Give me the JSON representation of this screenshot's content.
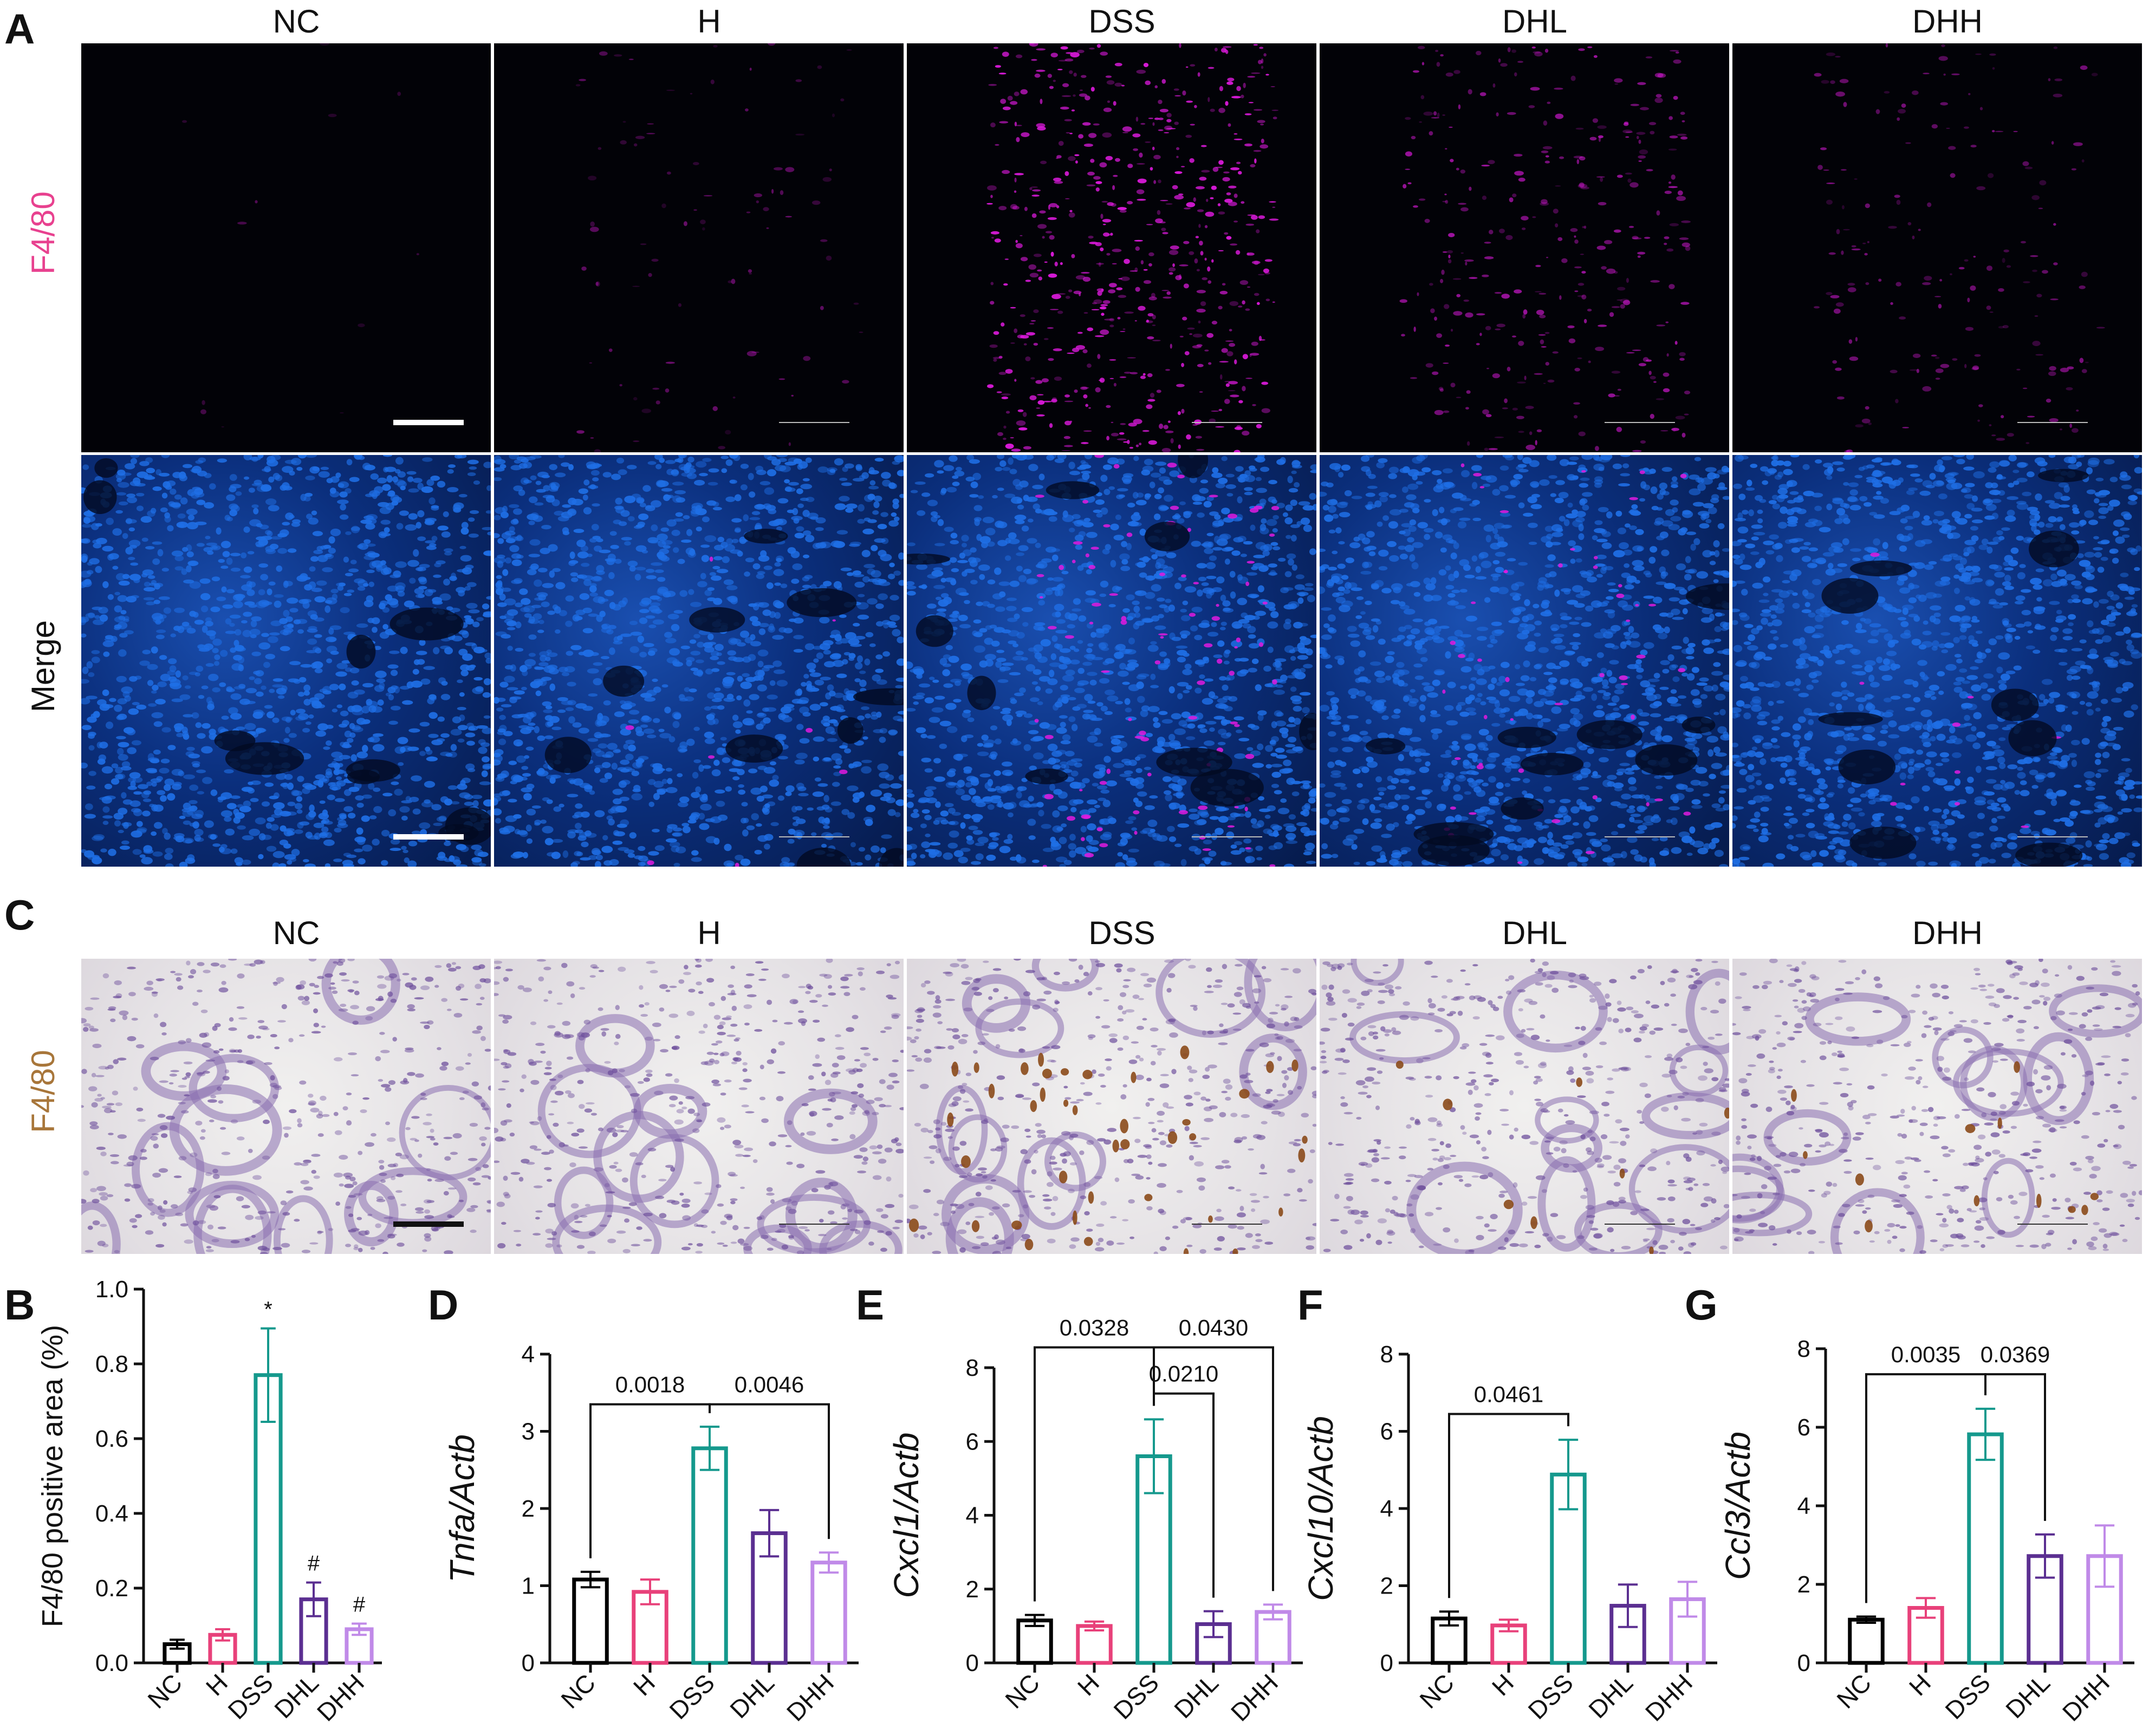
{
  "panels": {
    "A": {
      "letter": "A",
      "columns": [
        "NC",
        "H",
        "DSS",
        "DHL",
        "DHH"
      ],
      "rows": [
        {
          "label": "F4/80",
          "label_color": "#e8418f",
          "kind": "fluor"
        },
        {
          "label": "Merge",
          "label_color": "#111111",
          "kind": "merge"
        }
      ]
    },
    "C": {
      "letter": "C",
      "columns": [
        "NC",
        "H",
        "DSS",
        "DHL",
        "DHH"
      ],
      "row_label": "F4/80",
      "row_label_color": "#a8763a"
    }
  },
  "colors": {
    "NC": "#000000",
    "H": "#e8417a",
    "DSS": "#15998d",
    "DHL": "#5b2f91",
    "DHH": "#c08ae8",
    "nuclei_blue": "#1f6fe6",
    "f480_magenta": "#e01ae0",
    "hema_purple": "#8a6fb0",
    "dab_brown": "#8b4a1a"
  },
  "chart_data": [
    {
      "panel": "B",
      "type": "bar",
      "categories": [
        "NC",
        "H",
        "DSS",
        "DHL",
        "DHH"
      ],
      "values": [
        0.05,
        0.075,
        0.77,
        0.17,
        0.09
      ],
      "errors": [
        0.012,
        0.015,
        0.125,
        0.045,
        0.015
      ],
      "annotations": [
        "",
        "",
        "*",
        "#",
        "#"
      ],
      "ylabel": "F4/80 positive area (%)",
      "ylabel_italic_part": "",
      "ylim": [
        0,
        1.0
      ],
      "yticks": [
        "0.0",
        "0.2",
        "0.4",
        "0.6",
        "0.8",
        "1.0"
      ],
      "comparisons": []
    },
    {
      "panel": "D",
      "type": "bar",
      "categories": [
        "NC",
        "H",
        "DSS",
        "DHL",
        "DHH"
      ],
      "values": [
        1.08,
        0.92,
        2.78,
        1.68,
        1.3
      ],
      "errors": [
        0.1,
        0.16,
        0.28,
        0.3,
        0.13
      ],
      "annotations": [],
      "ylabel": "Tnfa/Actb",
      "ylim": [
        0,
        4
      ],
      "yticks": [
        "0",
        "1",
        "2",
        "3",
        "4"
      ],
      "comparisons": [
        {
          "from": 0,
          "to": 2,
          "label": "0.0018",
          "y": 3.35
        },
        {
          "from": 2,
          "to": 4,
          "label": "0.0046",
          "y": 3.35
        }
      ]
    },
    {
      "panel": "E",
      "type": "bar",
      "categories": [
        "NC",
        "H",
        "DSS",
        "DHL",
        "DHH"
      ],
      "values": [
        1.15,
        1.0,
        5.6,
        1.05,
        1.38
      ],
      "errors": [
        0.15,
        0.12,
        1.0,
        0.35,
        0.2
      ],
      "annotations": [],
      "ylabel": "Cxcl1/Actb",
      "ylim": [
        0,
        8
      ],
      "yticks": [
        "0",
        "2",
        "4",
        "6",
        "8"
      ],
      "comparisons": [
        {
          "from": 0,
          "to": 2,
          "label": "0.0328",
          "y": 8.55
        },
        {
          "from": 2,
          "to": 4,
          "label": "0.0430",
          "y": 8.55
        },
        {
          "from": 2,
          "to": 3,
          "label": "0.0210",
          "y": 7.3
        }
      ]
    },
    {
      "panel": "F",
      "type": "bar",
      "categories": [
        "NC",
        "H",
        "DSS",
        "DHL",
        "DHH"
      ],
      "values": [
        1.15,
        0.97,
        4.88,
        1.48,
        1.65
      ],
      "errors": [
        0.18,
        0.15,
        0.9,
        0.55,
        0.45
      ],
      "annotations": [],
      "ylabel": "Cxcl10/Actb",
      "ylim": [
        0,
        8
      ],
      "yticks": [
        "0",
        "2",
        "4",
        "6",
        "8"
      ],
      "comparisons": [
        {
          "from": 0,
          "to": 2,
          "label": "0.0461",
          "y": 6.45
        }
      ]
    },
    {
      "panel": "G",
      "type": "bar",
      "categories": [
        "NC",
        "H",
        "DSS",
        "DHL",
        "DHH"
      ],
      "values": [
        1.1,
        1.4,
        5.82,
        2.72,
        2.72
      ],
      "errors": [
        0.08,
        0.25,
        0.65,
        0.55,
        0.78
      ],
      "annotations": [],
      "ylabel": "Ccl3/Actb",
      "ylim": [
        0,
        8
      ],
      "yticks": [
        "0",
        "2",
        "4",
        "6",
        "8"
      ],
      "comparisons": [
        {
          "from": 0,
          "to": 2,
          "label": "0.0035",
          "y": 7.35
        },
        {
          "from": 2,
          "to": 3,
          "label": "0.0369",
          "y": 7.35
        }
      ]
    }
  ]
}
